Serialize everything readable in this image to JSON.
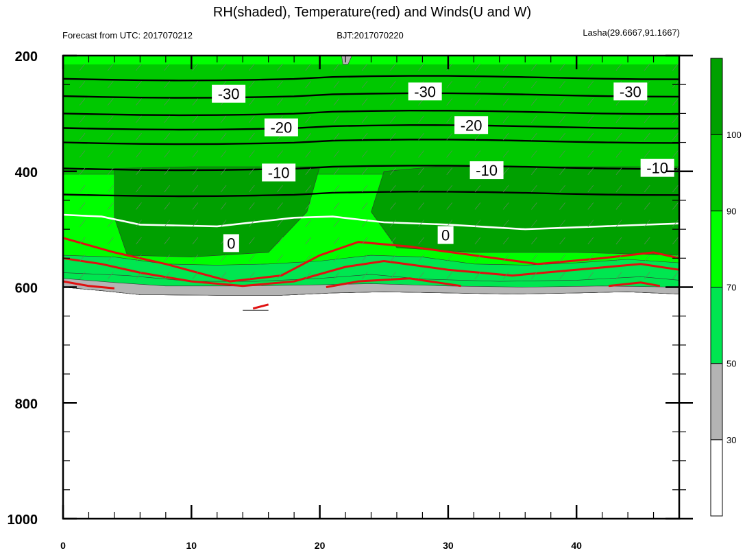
{
  "title": "RH(shaded), Temperature(red) and Winds(U and W)",
  "subtitle_left": "Forecast from UTC: 2017070212",
  "subtitle_center": "BJT:2017070220",
  "subtitle_right": "Lasha(29.6667,91.1667)",
  "colors": {
    "rh_bins": [
      "#ffffff",
      "#b4b4b4",
      "#00e650",
      "#00ff00",
      "#00c800",
      "#00a000",
      "#008000"
    ],
    "temperature": "#e01010",
    "isotherm_black": "#000000",
    "freezing": "#ffffff"
  },
  "chart_data": {
    "type": "heatmap",
    "x_ticks": [
      0,
      10,
      20,
      30,
      40
    ],
    "y_ticks": [
      200,
      400,
      600,
      800,
      1000
    ],
    "xlim": [
      0,
      48
    ],
    "ylim": [
      1000,
      200
    ],
    "colorbar": {
      "bins": [
        [
          0,
          30
        ],
        [
          30,
          50
        ],
        [
          50,
          70
        ],
        [
          70,
          90
        ],
        [
          90,
          100
        ],
        [
          100,
          110
        ]
      ],
      "tick_labels": [
        "30",
        "50",
        "70",
        "90",
        "100"
      ]
    },
    "contour_labels": [
      {
        "text": "-30",
        "x": 12.9,
        "y": 266
      },
      {
        "text": "-30",
        "x": 28.2,
        "y": 262
      },
      {
        "text": "-30",
        "x": 44.2,
        "y": 262
      },
      {
        "text": "-20",
        "x": 17.0,
        "y": 324
      },
      {
        "text": "-20",
        "x": 31.8,
        "y": 320
      },
      {
        "text": "-10",
        "x": 16.8,
        "y": 402
      },
      {
        "text": "-10",
        "x": 33.0,
        "y": 398
      },
      {
        "text": "-10",
        "x": 46.3,
        "y": 394
      },
      {
        "text": "0",
        "x": 13.1,
        "y": 524
      },
      {
        "text": "0",
        "x": 29.8,
        "y": 510
      }
    ]
  }
}
